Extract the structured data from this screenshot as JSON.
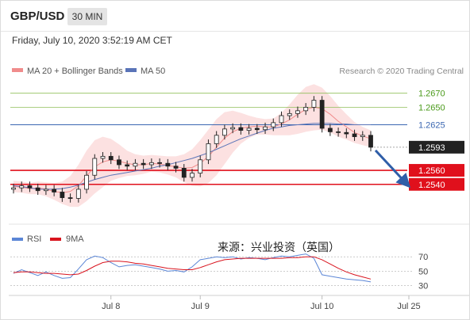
{
  "header": {
    "symbol": "GBP/USD",
    "timeframe": "30 MIN"
  },
  "timestamp": "Friday, July 10, 2020 3:52:19 AM CET",
  "legend": {
    "ma20_label": "MA 20 + Bollinger Bands",
    "ma50_label": "MA 50",
    "source": "Research © 2020 Trading Central"
  },
  "watermark": "来源：兴业投资（英国）",
  "colors": {
    "up_candle": "#ffffff",
    "down_candle": "#222222",
    "ma20": "#f08c8c",
    "band_fill": "#fbdcdc",
    "ma50": "#5a74b8",
    "resistance": "#8fbf5a",
    "pivot": "#3b67b1",
    "support": "#e0101c",
    "arrow": "#2f5ea8",
    "rsi": "#5b86d6",
    "rsi_ma": "#d9141e"
  },
  "chart_data": [
    {
      "type": "line",
      "name": "price",
      "ylim": [
        1.249,
        1.269
      ],
      "price_axis_labels": [
        {
          "value": 1.267,
          "label": "1.2670",
          "kind": "resistance"
        },
        {
          "value": 1.265,
          "label": "1.2650",
          "kind": "resistance"
        },
        {
          "value": 1.2625,
          "label": "1.2625",
          "kind": "pivot"
        },
        {
          "value": 1.2593,
          "label": "1.2593",
          "kind": "last"
        },
        {
          "value": 1.256,
          "label": "1.2560",
          "kind": "support"
        },
        {
          "value": 1.254,
          "label": "1.2540",
          "kind": "support"
        }
      ],
      "series": [
        {
          "name": "MA 20 + Bollinger Bands",
          "values": [
            1.2537,
            1.2536,
            1.2534,
            1.2535,
            1.2533,
            1.253,
            1.2528,
            1.253,
            1.2538,
            1.2552,
            1.2565,
            1.2572,
            1.2575,
            1.2573,
            1.257,
            1.2568,
            1.2568,
            1.257,
            1.2569,
            1.2567,
            1.2565,
            1.2563,
            1.2564,
            1.257,
            1.258,
            1.2593,
            1.2606,
            1.2615,
            1.262,
            1.2622,
            1.2623,
            1.2622,
            1.2622,
            1.2626,
            1.2632,
            1.264,
            1.2647,
            1.265,
            1.2648,
            1.264,
            1.263,
            1.2622,
            1.2614,
            1.2609,
            1.2605
          ]
        },
        {
          "name": "MA 50",
          "values": [
            1.2538,
            1.2537,
            1.2535,
            1.2533,
            1.2533,
            1.2533,
            1.2534,
            1.2536,
            1.2539,
            1.2543,
            1.2547,
            1.255,
            1.2553,
            1.2555,
            1.2557,
            1.2559,
            1.2561,
            1.2563,
            1.2566,
            1.2568,
            1.2571,
            1.2574,
            1.2577,
            1.2581,
            1.2585,
            1.259,
            1.2595,
            1.26,
            1.2605,
            1.2609,
            1.2613,
            1.2617,
            1.262,
            1.2622,
            1.2624,
            1.2625,
            1.2626,
            1.2627,
            1.2627,
            1.2627,
            1.2626,
            1.2626,
            1.2625,
            1.2625,
            1.2625
          ]
        }
      ],
      "band_half_width": [
        0.0008,
        0.0008,
        0.0008,
        0.0009,
        0.001,
        0.0012,
        0.0016,
        0.0022,
        0.003,
        0.0036,
        0.0038,
        0.0036,
        0.003,
        0.0024,
        0.0018,
        0.0015,
        0.0013,
        0.0012,
        0.0012,
        0.0013,
        0.0015,
        0.002,
        0.0026,
        0.0033,
        0.0038,
        0.004,
        0.0037,
        0.003,
        0.0022,
        0.0016,
        0.0012,
        0.0011,
        0.0012,
        0.0016,
        0.0022,
        0.0028,
        0.0032,
        0.0033,
        0.003,
        0.0026,
        0.0022,
        0.0018,
        0.0015,
        0.0013,
        0.0012
      ],
      "candles_close": [
        1.2535,
        1.2538,
        1.2535,
        1.2531,
        1.2533,
        1.2529,
        1.2521,
        1.252,
        1.2533,
        1.2553,
        1.2577,
        1.258,
        1.2575,
        1.2568,
        1.2566,
        1.257,
        1.2568,
        1.2571,
        1.257,
        1.2566,
        1.2563,
        1.255,
        1.2556,
        1.2575,
        1.2598,
        1.261,
        1.2619,
        1.2621,
        1.2617,
        1.262,
        1.2618,
        1.2622,
        1.2628,
        1.2638,
        1.2641,
        1.2645,
        1.265,
        1.266,
        1.262,
        1.2615,
        1.2614,
        1.2612,
        1.2608,
        1.261,
        1.2593
      ],
      "candles_open_first": 1.2533,
      "projection": {
        "from_close": 1.2593,
        "to_level": 1.254
      },
      "x_axis_labels": [
        "Jul 8",
        "Jul 9",
        "Jul 10",
        "Jul 25"
      ],
      "x_label_index": [
        12,
        23,
        38,
        44
      ]
    },
    {
      "type": "line",
      "name": "rsi",
      "ylim": [
        25,
        78
      ],
      "tick_labels": [
        "70",
        "50",
        "30"
      ],
      "tick_values": [
        70,
        50,
        30
      ],
      "legend": [
        "RSI",
        "9MA"
      ],
      "series": [
        {
          "name": "RSI",
          "values": [
            47,
            52,
            48,
            44,
            49,
            44,
            40,
            41,
            53,
            66,
            71,
            69,
            62,
            56,
            58,
            59,
            57,
            55,
            53,
            50,
            51,
            49,
            56,
            66,
            68,
            70,
            69,
            70,
            67,
            69,
            68,
            66,
            69,
            71,
            70,
            72,
            74,
            68,
            45,
            43,
            41,
            39,
            38,
            37,
            35
          ]
        },
        {
          "name": "9MA",
          "values": [
            48,
            49,
            49,
            48,
            47,
            47,
            46,
            45,
            46,
            51,
            57,
            62,
            64,
            64,
            63,
            61,
            60,
            58,
            56,
            54,
            53,
            52,
            52,
            55,
            59,
            63,
            66,
            67,
            68,
            68,
            68,
            68,
            68,
            68,
            69,
            69,
            70,
            70,
            66,
            60,
            54,
            49,
            45,
            42,
            39
          ]
        }
      ]
    }
  ]
}
